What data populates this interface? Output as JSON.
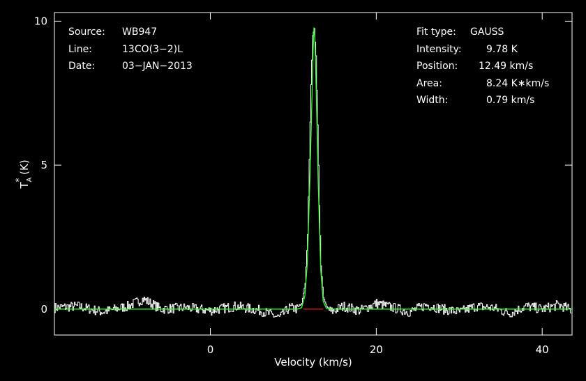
{
  "info": {
    "source_label": "Source:",
    "source_value": "WB947",
    "line_label": "Line:",
    "line_value": "13CO(3−2)L",
    "date_label": "Date:",
    "date_value": "03−JAN−2013",
    "fit_type_label": "Fit type:",
    "fit_type_value": "GAUSS",
    "intensity_label": "Intensity:",
    "intensity_value": "9.78 K",
    "position_label": "Position:",
    "position_value": "12.49 km/s",
    "area_label": "Area:",
    "area_value": "8.24 K∗km/s",
    "width_label": "Width:",
    "width_value": "0.79 km/s"
  },
  "colors": {
    "background": "#000000",
    "axes": "#ffffff",
    "spectrum": "#ffffff",
    "fit": "#33ff33",
    "baseline": "#ff2020"
  },
  "chart_data": {
    "type": "line",
    "xlabel": "Velocity (km/s)",
    "ylabel_main": "T",
    "ylabel_sup": "*",
    "ylabel_sub": "A",
    "ylabel_unit": " (K)",
    "xlim": [
      -18.8,
      43.6
    ],
    "ylim": [
      -0.9,
      10.3
    ],
    "xticks": [
      0,
      20,
      40
    ],
    "xticklabels": [
      "0",
      "20",
      "40"
    ],
    "yticks": [
      0,
      5,
      10
    ],
    "yticklabels": [
      "0",
      "5",
      "10"
    ],
    "grid": false,
    "legend": "none",
    "series": [
      {
        "role": "spectrum",
        "style": "histogram",
        "x": [
          -18.8,
          -16.0,
          -13.0,
          -10.0,
          -8.1,
          -6.0,
          -3.0,
          0.0,
          3.0,
          6.0,
          8.3,
          9.5,
          10.5,
          11.0,
          11.4,
          11.7,
          11.9,
          12.1,
          12.3,
          12.5,
          12.7,
          12.9,
          13.1,
          13.3,
          13.6,
          14.0,
          14.5,
          16.0,
          18.0,
          20.0,
          22.0,
          24.0,
          26.0,
          28.0,
          30.0,
          32.0,
          34.0,
          36.0,
          38.0,
          40.0,
          42.0,
          43.6
        ],
        "y": [
          0.05,
          0.1,
          -0.1,
          0.1,
          0.35,
          0.0,
          0.05,
          -0.05,
          0.1,
          -0.05,
          -0.3,
          0.05,
          0.0,
          0.2,
          0.9,
          2.6,
          5.2,
          7.8,
          9.5,
          9.75,
          8.8,
          6.4,
          3.6,
          1.5,
          0.4,
          0.1,
          -0.1,
          0.1,
          -0.05,
          0.2,
          0.05,
          -0.1,
          0.15,
          0.0,
          -0.1,
          0.1,
          0.05,
          -0.15,
          0.1,
          0.0,
          0.15,
          -0.05
        ]
      },
      {
        "role": "gaussian-fit",
        "x": [
          -18.8,
          10.5,
          11.0,
          11.4,
          11.7,
          12.0,
          12.2,
          12.4,
          12.49,
          12.6,
          12.8,
          13.0,
          13.3,
          13.6,
          14.0,
          14.5,
          43.6
        ],
        "y": [
          0,
          0.0,
          0.05,
          0.47,
          1.66,
          4.53,
          6.79,
          9.09,
          9.78,
          9.44,
          7.09,
          4.38,
          1.38,
          0.27,
          0.02,
          0.0,
          0
        ]
      },
      {
        "role": "baseline",
        "x": [
          11.2,
          13.6
        ],
        "y": [
          0,
          0
        ]
      }
    ]
  }
}
